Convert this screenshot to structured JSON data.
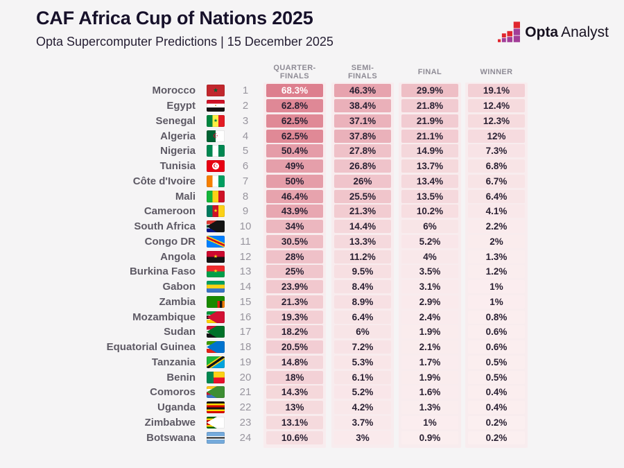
{
  "header": {
    "title": "CAF Africa Cup of Nations 2025",
    "subtitle": "Opta Supercomputer Predictions | 15 December 2025"
  },
  "logo": {
    "bold": "Opta",
    "regular": "Analyst"
  },
  "table": {
    "column_headers": [
      "QUARTER-\nFINALS",
      "SEMI-\nFINALS",
      "FINAL",
      "WINNER"
    ]
  },
  "colors": {
    "background": "#f5f4f5",
    "band": "#f8ecee",
    "cell_low": "#fbeff0",
    "cell_high": "#dd7f8e",
    "heat_max": 68.3,
    "white_text_threshold": 65,
    "text_dark": "#2a2133",
    "text_light": "#ffffff",
    "logo_red": "#e0262e",
    "logo_purple": "#a23d98"
  },
  "chart_data": {
    "type": "heatmap",
    "title": "CAF Africa Cup of Nations 2025",
    "subtitle": "Opta Supercomputer Predictions | 15 December 2025",
    "columns": [
      "Quarter-finals",
      "Semi-finals",
      "Final",
      "Winner"
    ],
    "unit": "percent probability",
    "rows": [
      {
        "rank": 1,
        "team": "Morocco",
        "values": [
          "68.3%",
          "46.3%",
          "29.9%",
          "19.1%"
        ],
        "flag": {
          "bg": "#c1272d",
          "char": "★",
          "char_color": "#006233",
          "char_size": 9
        }
      },
      {
        "rank": 2,
        "team": "Egypt",
        "values": [
          "62.8%",
          "38.4%",
          "21.8%",
          "12.4%"
        ],
        "flag": {
          "bg": "linear-gradient(180deg,#ce1126 0 33%,#ffffff 33% 66%,#141414 66%)",
          "char": "▪",
          "char_color": "#c09300",
          "char_size": 6
        }
      },
      {
        "rank": 3,
        "team": "Senegal",
        "values": [
          "62.5%",
          "37.1%",
          "21.9%",
          "12.3%"
        ],
        "flag": {
          "bg": "linear-gradient(90deg,#00853f 0 33%,#fdef42 33% 66%,#e31b23 66%)",
          "char": "★",
          "char_color": "#00853f",
          "char_size": 7
        }
      },
      {
        "rank": 4,
        "team": "Algeria",
        "values": [
          "62.5%",
          "37.8%",
          "21.1%",
          "12%"
        ],
        "flag": {
          "bg": "linear-gradient(90deg,#006233 0 50%,#ffffff 50%)",
          "char": "☪",
          "char_color": "#d21034",
          "char_size": 9
        }
      },
      {
        "rank": 5,
        "team": "Nigeria",
        "values": [
          "50.4%",
          "27.8%",
          "14.9%",
          "7.3%"
        ],
        "flag": {
          "bg": "linear-gradient(90deg,#008751 0 33%,#ffffff 33% 66%,#008751 66%)"
        }
      },
      {
        "rank": 6,
        "team": "Tunisia",
        "values": [
          "49%",
          "26.8%",
          "13.7%",
          "6.8%"
        ],
        "flag": {
          "bg": "radial-gradient(circle at 50% 50%,#ffffff 0 5px,#e70013 5px)",
          "char": "☪",
          "char_color": "#e70013",
          "char_size": 8
        }
      },
      {
        "rank": 7,
        "team": "Côte d'Ivoire",
        "values": [
          "50%",
          "26%",
          "13.4%",
          "6.7%"
        ],
        "flag": {
          "bg": "linear-gradient(90deg,#f77f00 0 33%,#ffffff 33% 66%,#009e60 66%)"
        }
      },
      {
        "rank": 8,
        "team": "Mali",
        "values": [
          "46.4%",
          "25.5%",
          "13.5%",
          "6.4%"
        ],
        "flag": {
          "bg": "linear-gradient(90deg,#14b53a 0 33%,#fcd116 33% 66%,#ce1126 66%)"
        }
      },
      {
        "rank": 9,
        "team": "Cameroon",
        "values": [
          "43.9%",
          "21.3%",
          "10.2%",
          "4.1%"
        ],
        "flag": {
          "bg": "linear-gradient(90deg,#007a5e 0 33%,#ce1126 33% 66%,#fcd116 66%)",
          "char": "★",
          "char_color": "#fcd116",
          "char_size": 7
        }
      },
      {
        "rank": 10,
        "team": "South Africa",
        "values": [
          "34%",
          "14.4%",
          "6%",
          "2.2%"
        ],
        "flag": {
          "bg": "conic-gradient(from 60deg at 0% 50%,#141414 0 60deg,#0000 60deg),linear-gradient(180deg,#de3831 0 31%,#ffffff 31% 39%,#007a4d 39% 61%,#ffffff 61% 69%,#001489 69%)"
        }
      },
      {
        "rank": 11,
        "team": "Congo DR",
        "values": [
          "30.5%",
          "13.3%",
          "5.2%",
          "2%"
        ],
        "flag": {
          "bg": "linear-gradient(24deg,#007fff 0 40%,#f7d618 40% 46%,#ce1021 46% 56%,#f7d618 56% 62%,#007fff 62%)"
        }
      },
      {
        "rank": 12,
        "team": "Angola",
        "values": [
          "28%",
          "11.2%",
          "4%",
          "1.3%"
        ],
        "flag": {
          "bg": "linear-gradient(180deg,#cc092f 0 50%,#141414 50%)",
          "char": "★",
          "char_color": "#f9d616",
          "char_size": 7
        }
      },
      {
        "rank": 13,
        "team": "Burkina Faso",
        "values": [
          "25%",
          "9.5%",
          "3.5%",
          "1.2%"
        ],
        "flag": {
          "bg": "linear-gradient(180deg,#ef2b2d 0 50%,#009e49 50%)",
          "char": "★",
          "char_color": "#fcd116",
          "char_size": 7
        }
      },
      {
        "rank": 14,
        "team": "Gabon",
        "values": [
          "23.9%",
          "8.4%",
          "3.1%",
          "1%"
        ],
        "flag": {
          "bg": "linear-gradient(180deg,#009e60 0 33%,#fcd116 33% 66%,#3a75c4 66%)"
        }
      },
      {
        "rank": 15,
        "team": "Zambia",
        "values": [
          "21.3%",
          "8.9%",
          "2.9%",
          "1%"
        ],
        "flag": {
          "bg": "linear-gradient(180deg,#198a00 0 40%,#0000 40%),linear-gradient(90deg,#198a00 0 60%,#de2010 60% 73%,#141414 73% 86%,#ef7d00 86%)"
        }
      },
      {
        "rank": 16,
        "team": "Mozambique",
        "values": [
          "19.3%",
          "6.4%",
          "2.4%",
          "0.8%"
        ],
        "flag": {
          "bg": "conic-gradient(from 60deg at 0% 50%,#d21034 0 60deg,#0000 60deg),linear-gradient(180deg,#009639 0 29%,#ffffff 29% 36%,#141414 36% 64%,#ffffff 64% 71%,#ffd100 71%)"
        }
      },
      {
        "rank": 17,
        "team": "Sudan",
        "values": [
          "18.2%",
          "6%",
          "1.9%",
          "0.6%"
        ],
        "flag": {
          "bg": "conic-gradient(from 60deg at 0% 50%,#007229 0 60deg,#0000 60deg),linear-gradient(180deg,#d21034 0 33%,#ffffff 33% 66%,#141414 66%)"
        }
      },
      {
        "rank": 18,
        "team": "Equatorial Guinea",
        "values": [
          "20.5%",
          "7.2%",
          "2.1%",
          "0.6%"
        ],
        "flag": {
          "bg": "conic-gradient(from 60deg at 0% 50%,#0073ce 0 60deg,#0000 60deg),linear-gradient(180deg,#3e9a00 0 33%,#ffffff 33% 66%,#e32118 66%)"
        }
      },
      {
        "rank": 19,
        "team": "Tanzania",
        "values": [
          "14.8%",
          "5.3%",
          "1.7%",
          "0.5%"
        ],
        "flag": {
          "bg": "linear-gradient(146deg,#1eb53a 0 38%,#fcd116 38% 44%,#141414 44% 56%,#fcd116 56% 62%,#00a3dd 62%)"
        }
      },
      {
        "rank": 20,
        "team": "Benin",
        "values": [
          "18%",
          "6.1%",
          "1.9%",
          "0.5%"
        ],
        "flag": {
          "bg": "linear-gradient(90deg,#008751 0 38%,#0000 38%),linear-gradient(180deg,#fcd116 0 50%,#e8112d 50%)"
        }
      },
      {
        "rank": 21,
        "team": "Comoros",
        "values": [
          "14.3%",
          "5.2%",
          "1.6%",
          "0.4%"
        ],
        "flag": {
          "bg": "conic-gradient(from 60deg at 0% 50%,#3d8e33 0 60deg,#0000 60deg),linear-gradient(180deg,#ffc61e 0 25%,#ffffff 25% 50%,#ce1126 50% 75%,#3a75c4 75%)"
        }
      },
      {
        "rank": 22,
        "team": "Uganda",
        "values": [
          "13%",
          "4.2%",
          "1.3%",
          "0.4%"
        ],
        "flag": {
          "bg": "linear-gradient(180deg,#141414 0 17%,#fcdc04 17% 33%,#d90000 33% 50%,#141414 50% 67%,#fcdc04 67% 83%,#d90000 83%)"
        }
      },
      {
        "rank": 23,
        "team": "Zimbabwe",
        "values": [
          "13.1%",
          "3.7%",
          "1%",
          "0.2%"
        ],
        "flag": {
          "bg": "conic-gradient(from 60deg at 0% 50%,#ffffff 0 60deg,#0000 60deg),linear-gradient(180deg,#006400 0 14%,#ffd200 14% 28%,#d40000 28% 43%,#141414 43% 57%,#d40000 57% 72%,#ffd200 72% 86%,#006400 86%)"
        }
      },
      {
        "rank": 24,
        "team": "Botswana",
        "values": [
          "10.6%",
          "3%",
          "0.9%",
          "0.2%"
        ],
        "flag": {
          "bg": "linear-gradient(180deg,#75aadb 0 36%,#ffffff 36% 44%,#141414 44% 56%,#ffffff 56% 64%,#75aadb 64%)"
        }
      }
    ]
  }
}
